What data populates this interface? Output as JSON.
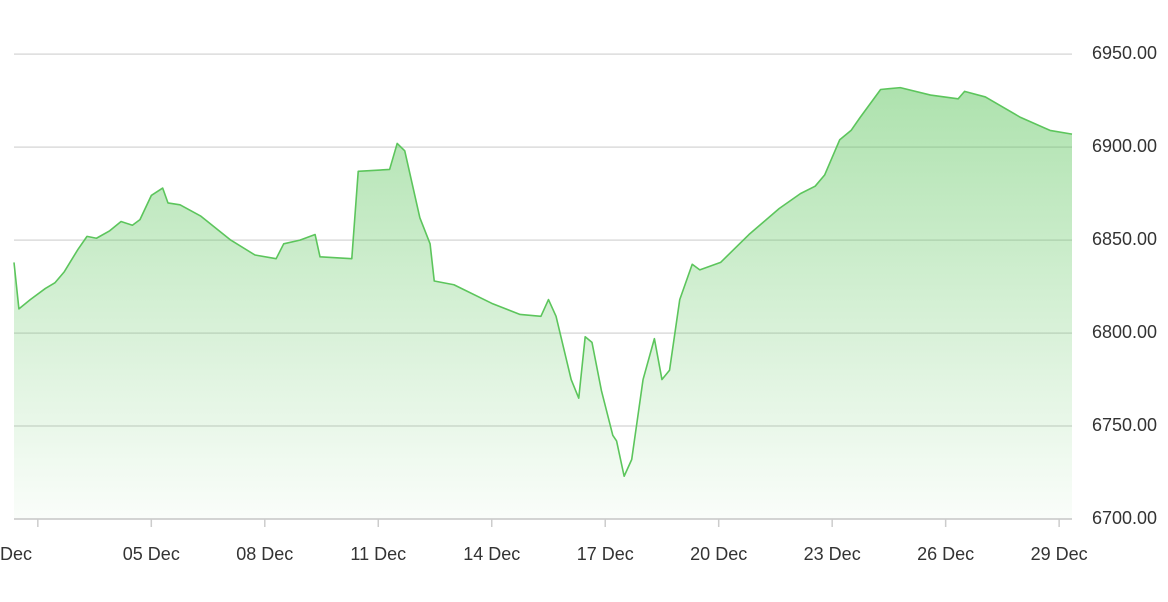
{
  "chart_data": {
    "type": "area",
    "x": [
      1.37,
      1.5,
      1.8,
      2.2,
      2.45,
      2.7,
      3.06,
      3.3,
      3.55,
      3.9,
      4.2,
      4.5,
      4.7,
      5.0,
      5.3,
      5.44,
      5.76,
      6.3,
      7.1,
      7.74,
      8.3,
      8.5,
      8.93,
      9.33,
      9.46,
      10.3,
      10.47,
      11.3,
      11.5,
      11.7,
      12.1,
      12.37,
      12.48,
      13.0,
      14.0,
      14.75,
      15.3,
      15.5,
      15.7,
      16.1,
      16.3,
      16.47,
      16.65,
      16.9,
      17.2,
      17.3,
      17.5,
      17.7,
      18.0,
      18.3,
      18.5,
      18.7,
      18.97,
      19.3,
      19.5,
      20.05,
      20.8,
      21.6,
      22.16,
      22.55,
      22.8,
      23.2,
      23.5,
      23.74,
      24.28,
      24.8,
      25.6,
      26.33,
      26.5,
      27.05,
      27.98,
      28.76,
      29.34
    ],
    "series": [
      {
        "color": "#5cc55c",
        "values": [
          6838,
          6813,
          6818,
          6824,
          6827,
          6833,
          6845,
          6852,
          6851,
          6855,
          6860,
          6858,
          6861,
          6874,
          6878,
          6870,
          6869,
          6863,
          6850,
          6842,
          6840,
          6848,
          6850,
          6853,
          6841,
          6840,
          6887,
          6888,
          6902,
          6898,
          6862,
          6848,
          6828,
          6826,
          6816,
          6810,
          6809,
          6818,
          6809,
          6775,
          6765,
          6798,
          6795,
          6769,
          6745,
          6742,
          6723,
          6732,
          6775,
          6797,
          6775,
          6780,
          6818,
          6837,
          6834,
          6838,
          6853,
          6867,
          6875,
          6879,
          6885,
          6904,
          6909,
          6916,
          6931,
          6932,
          6928,
          6926,
          6930,
          6927,
          6916,
          6909,
          6907
        ]
      }
    ],
    "xlim": [
      1.37,
      29.34
    ],
    "xticks": [
      {
        "value": 2,
        "label": "Dec"
      },
      {
        "value": 5,
        "label": "05 Dec"
      },
      {
        "value": 8,
        "label": "08 Dec"
      },
      {
        "value": 11,
        "label": "11 Dec"
      },
      {
        "value": 14,
        "label": "14 Dec"
      },
      {
        "value": 17,
        "label": "17 Dec"
      },
      {
        "value": 20,
        "label": "20 Dec"
      },
      {
        "value": 23,
        "label": "23 Dec"
      },
      {
        "value": 26,
        "label": "26 Dec"
      },
      {
        "value": 29,
        "label": "29 Dec"
      }
    ],
    "ylim": [
      6700,
      6963
    ],
    "yticks": [
      {
        "value": 6700,
        "label": "6700.00"
      },
      {
        "value": 6750,
        "label": "6750.00"
      },
      {
        "value": 6800,
        "label": "6800.00"
      },
      {
        "value": 6850,
        "label": "6850.00"
      },
      {
        "value": 6900,
        "label": "6900.00"
      },
      {
        "value": 6950,
        "label": "6950.00"
      }
    ],
    "grid": true
  }
}
